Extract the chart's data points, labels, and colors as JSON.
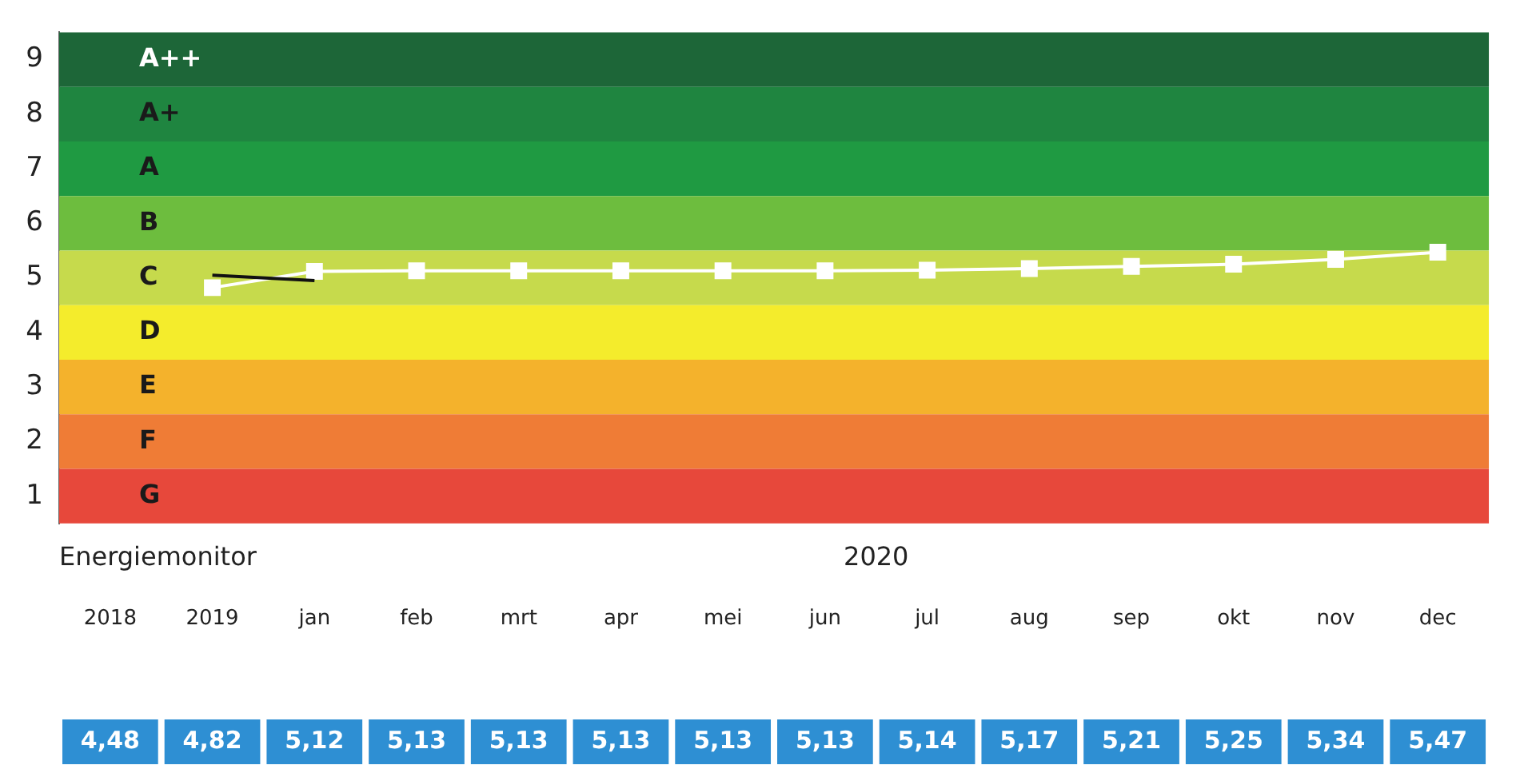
{
  "chart_data": {
    "type": "line",
    "categories": [
      "2018",
      "2019",
      "jan",
      "feb",
      "mrt",
      "apr",
      "mei",
      "jun",
      "jul",
      "aug",
      "sep",
      "okt",
      "nov",
      "dec"
    ],
    "series": [
      {
        "color": "#111111",
        "marker": "none",
        "values": [
          null,
          5.05,
          4.95,
          null,
          null,
          null,
          null,
          null,
          null,
          null,
          null,
          null,
          null,
          null
        ]
      },
      {
        "color": "#ffffff",
        "marker": "square",
        "values": [
          null,
          4.82,
          5.12,
          5.13,
          5.13,
          5.13,
          5.13,
          5.13,
          5.14,
          5.17,
          5.21,
          5.25,
          5.34,
          5.47
        ],
        "value_labels": [
          "4,48",
          "4,82",
          "5,12",
          "5,13",
          "5,13",
          "5,13",
          "5,13",
          "5,13",
          "5,14",
          "5,17",
          "5,21",
          "5,25",
          "5,34",
          "5,47"
        ]
      }
    ],
    "ylim": [
      0.5,
      9.5
    ],
    "yticks": [
      1,
      2,
      3,
      4,
      5,
      6,
      7,
      8,
      9
    ],
    "grid": false,
    "legend": false,
    "line_style": "solid",
    "bands": [
      {
        "axis": "y",
        "from": 8.5,
        "to": 9.5,
        "label": "A++",
        "color": "#1d6638"
      },
      {
        "axis": "y",
        "from": 7.5,
        "to": 8.5,
        "label": "A+",
        "color": "#1f8540"
      },
      {
        "axis": "y",
        "from": 6.5,
        "to": 7.5,
        "label": "A",
        "color": "#1f9a42"
      },
      {
        "axis": "y",
        "from": 5.5,
        "to": 6.5,
        "label": "B",
        "color": "#6dbd3e"
      },
      {
        "axis": "y",
        "from": 4.5,
        "to": 5.5,
        "label": "C",
        "color": "#c6da4c"
      },
      {
        "axis": "y",
        "from": 3.5,
        "to": 4.5,
        "label": "D",
        "color": "#f4ec2c"
      },
      {
        "axis": "y",
        "from": 2.5,
        "to": 3.5,
        "label": "E",
        "color": "#f4b22c"
      },
      {
        "axis": "y",
        "from": 1.5,
        "to": 2.5,
        "label": "F",
        "color": "#ef7c36"
      },
      {
        "axis": "y",
        "from": 0.5,
        "to": 1.5,
        "label": "G",
        "color": "#e7483b"
      }
    ],
    "annotations": [
      "Energiemonitor",
      "2020"
    ]
  }
}
